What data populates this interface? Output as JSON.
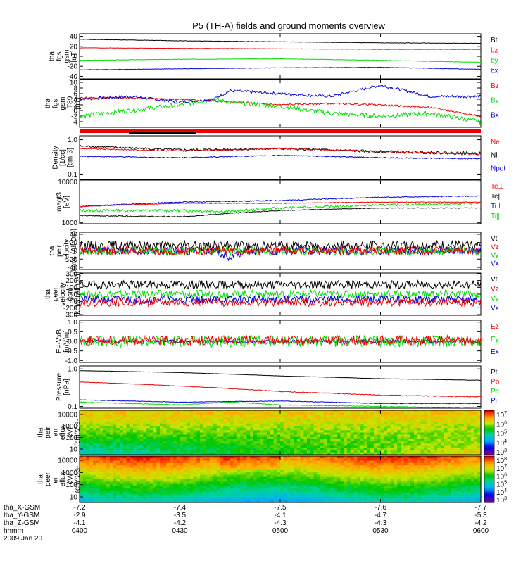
{
  "title": "P5 (TH-A) fields and ground moments overview",
  "colors": {
    "black": "#000000",
    "red": "#ee0000",
    "green": "#00dd00",
    "blue": "#0000dd"
  },
  "chart_data": {
    "type": "line",
    "x_range": [
      0,
      120
    ],
    "time_ticks": [
      "0400",
      "0430",
      "0500",
      "0530",
      "0600"
    ],
    "panels": [
      {
        "id": "fgs",
        "ylabel": [
          "tha",
          "fgs",
          "gsm",
          "[nT]"
        ],
        "ylim": [
          -45,
          45
        ],
        "yticks": [
          40,
          20,
          0,
          -20,
          -40
        ],
        "legend": [
          {
            "t": "Bt",
            "c": "black"
          },
          {
            "t": "bz",
            "c": "red"
          },
          {
            "t": "by",
            "c": "green"
          },
          {
            "t": "bx",
            "c": "blue"
          }
        ],
        "series": [
          {
            "name": "Bt",
            "color": "black",
            "noise": 0.4,
            "seed": 1,
            "x": [
              0,
              30,
              60,
              90,
              120
            ],
            "y": [
              34,
              31,
              29,
              27,
              26
            ]
          },
          {
            "name": "bz",
            "color": "red",
            "noise": 0.3,
            "seed": 2,
            "x": [
              0,
              30,
              60,
              90,
              120
            ],
            "y": [
              17,
              16,
              15,
              14,
              14
            ]
          },
          {
            "name": "by",
            "color": "green",
            "noise": 0.4,
            "seed": 3,
            "x": [
              0,
              30,
              60,
              90,
              120
            ],
            "y": [
              -8,
              -6,
              -5,
              -8,
              -12
            ]
          },
          {
            "name": "bx",
            "color": "blue",
            "noise": 0.4,
            "seed": 4,
            "x": [
              0,
              30,
              60,
              90,
              120
            ],
            "y": [
              -27,
              -25,
              -23,
              -22,
              -26
            ]
          }
        ]
      },
      {
        "id": "t89",
        "ylabel": [
          "tha",
          "fgs",
          "gsm",
          "-T89",
          "[nT]"
        ],
        "ylim": [
          -6,
          11
        ],
        "yticks": [
          10,
          8,
          6,
          4,
          2,
          0,
          -2,
          -4
        ],
        "legend": [
          {
            "t": "Bz",
            "c": "red"
          },
          {
            "t": "By",
            "c": "green"
          },
          {
            "t": "Bx",
            "c": "blue"
          }
        ],
        "series": [
          {
            "name": "Bz",
            "color": "red",
            "noise": 0.3,
            "seed": 5,
            "x": [
              0,
              15,
              30,
              45,
              60,
              75,
              90,
              105,
              120
            ],
            "y": [
              4.5,
              4.5,
              4,
              3,
              2,
              2.5,
              2,
              1,
              -2
            ]
          },
          {
            "name": "By",
            "color": "green",
            "noise": 0.8,
            "seed": 6,
            "x": [
              0,
              15,
              30,
              40,
              45,
              60,
              75,
              90,
              105,
              120
            ],
            "y": [
              -2,
              0,
              2,
              4,
              3,
              1.5,
              -1,
              -2,
              -1,
              -4
            ]
          },
          {
            "name": "Bx",
            "color": "blue",
            "noise": 0.5,
            "seed": 7,
            "x": [
              0,
              15,
              30,
              40,
              45,
              60,
              75,
              90,
              105,
              120
            ],
            "y": [
              4,
              5,
              3,
              4,
              7,
              6,
              5,
              9,
              5,
              5
            ]
          }
        ]
      },
      {
        "id": "density",
        "ylabel": [
          "Density",
          "[1/cc]",
          "[cm-3]"
        ],
        "log": true,
        "ylim": [
          0.07,
          1.3
        ],
        "yticks": [
          1.0,
          0.1
        ],
        "ytick_labels": [
          "1.0",
          "0.1"
        ],
        "legend": [
          {
            "t": "Ne",
            "c": "red"
          },
          {
            "t": "Ni",
            "c": "black"
          },
          {
            "t": "Npot",
            "c": "blue"
          }
        ],
        "series": [
          {
            "name": "Ni",
            "color": "black",
            "noise": 0.04,
            "seed": 8,
            "x": [
              0,
              30,
              60,
              90,
              120
            ],
            "y": [
              0.65,
              0.5,
              0.55,
              0.45,
              0.4
            ]
          },
          {
            "name": "Ne",
            "color": "red",
            "noise": 0.02,
            "seed": 9,
            "x": [
              0,
              30,
              60,
              90,
              120
            ],
            "y": [
              0.55,
              0.47,
              0.55,
              0.45,
              0.38
            ]
          },
          {
            "name": "Npot",
            "color": "blue",
            "noise": 0.01,
            "seed": 10,
            "x": [
              0,
              30,
              60,
              90,
              120
            ],
            "y": [
              0.33,
              0.3,
              0.35,
              0.3,
              0.28
            ]
          }
        ]
      },
      {
        "id": "temp",
        "ylabel": [
          "magt3",
          "[eV]"
        ],
        "log": true,
        "ylim": [
          950,
          11000
        ],
        "yticks": [
          10000,
          1000
        ],
        "ytick_labels": [
          "10000",
          "1000"
        ],
        "legend": [
          {
            "t": "Te⊥",
            "c": "red"
          },
          {
            "t": "Te||",
            "c": "black"
          },
          {
            "t": "Ti⊥",
            "c": "blue"
          },
          {
            "t": "Ti||",
            "c": "green"
          }
        ],
        "series": [
          {
            "name": "Ti⊥",
            "color": "blue",
            "noise": 100,
            "seed": 11,
            "x": [
              0,
              30,
              60,
              90,
              120
            ],
            "y": [
              2500,
              3200,
              3500,
              4200,
              4500
            ]
          },
          {
            "name": "Te⊥",
            "color": "red",
            "noise": 50,
            "seed": 12,
            "x": [
              0,
              30,
              60,
              90,
              120
            ],
            "y": [
              2500,
              3000,
              3000,
              3200,
              3200
            ]
          },
          {
            "name": "Ti||",
            "color": "green",
            "noise": 150,
            "seed": 13,
            "x": [
              0,
              30,
              45,
              60,
              90,
              120
            ],
            "y": [
              2000,
              2000,
              1900,
              2300,
              2700,
              3000
            ]
          },
          {
            "name": "Te||",
            "color": "black",
            "noise": 40,
            "seed": 14,
            "x": [
              0,
              30,
              45,
              60,
              90,
              120
            ],
            "y": [
              1500,
              1400,
              1700,
              2000,
              2300,
              2300
            ]
          }
        ]
      },
      {
        "id": "peir_vel",
        "ylabel": [
          "tha",
          "peir",
          "velocity",
          "[km/s (All Qs)]"
        ],
        "ylim": [
          -45,
          45
        ],
        "yticks": [
          40,
          20,
          0,
          -20,
          -40
        ],
        "legend": [
          {
            "t": "Vt",
            "c": "black"
          },
          {
            "t": "Vz",
            "c": "red"
          },
          {
            "t": "Vy",
            "c": "green"
          },
          {
            "t": "Vx",
            "c": "blue"
          }
        ],
        "series": [
          {
            "name": "Vt",
            "color": "black",
            "noise": 12,
            "seed": 15,
            "x": [
              0,
              120
            ],
            "y": [
              12,
              12
            ]
          },
          {
            "name": "Vx",
            "color": "blue",
            "noise": 10,
            "seed": 16,
            "x": [
              0,
              40,
              45,
              50,
              120
            ],
            "y": [
              0,
              0,
              -15,
              0,
              0
            ]
          },
          {
            "name": "Vy",
            "color": "green",
            "noise": 10,
            "seed": 17,
            "x": [
              0,
              120
            ],
            "y": [
              0,
              0
            ]
          },
          {
            "name": "Vz",
            "color": "red",
            "noise": 10,
            "seed": 18,
            "x": [
              0,
              120
            ],
            "y": [
              0,
              0
            ]
          }
        ]
      },
      {
        "id": "peer_vel",
        "ylabel": [
          "tha",
          "peer",
          "velocity",
          "gsm",
          "[km/s (All Qs)]"
        ],
        "ylim": [
          -310,
          310
        ],
        "yticks": [
          300,
          200,
          100,
          0,
          -100,
          -200,
          -300
        ],
        "legend": [
          {
            "t": "Vt",
            "c": "black"
          },
          {
            "t": "Vz",
            "c": "red"
          },
          {
            "t": "Vy",
            "c": "green"
          },
          {
            "t": "Vx",
            "c": "blue"
          }
        ],
        "series": [
          {
            "name": "Vt",
            "color": "black",
            "noise": 60,
            "seed": 19,
            "x": [
              0,
              120
            ],
            "y": [
              140,
              140
            ]
          },
          {
            "name": "Vy",
            "color": "green",
            "noise": 60,
            "seed": 20,
            "x": [
              0,
              120
            ],
            "y": [
              0,
              0
            ]
          },
          {
            "name": "Vx",
            "color": "blue",
            "noise": 60,
            "seed": 21,
            "x": [
              0,
              120
            ],
            "y": [
              -80,
              -80
            ]
          },
          {
            "name": "Vz",
            "color": "red",
            "noise": 60,
            "seed": 22,
            "x": [
              0,
              120
            ],
            "y": [
              -120,
              -120
            ]
          }
        ]
      },
      {
        "id": "efield",
        "ylabel": [
          "E=-VxB",
          "[mV/m]"
        ],
        "ylim": [
          -1.1,
          1.1
        ],
        "yticks": [
          1.0,
          0.5,
          0.0,
          -0.5,
          -1.0
        ],
        "ytick_labels": [
          "1.0",
          "0.5",
          "0.0",
          "-0.5",
          "-1.0"
        ],
        "legend": [
          {
            "t": "Ez",
            "c": "red"
          },
          {
            "t": "Ey",
            "c": "green"
          },
          {
            "t": "Ex",
            "c": "blue"
          }
        ],
        "series": [
          {
            "name": "Ex",
            "color": "blue",
            "noise": 0.08,
            "seed": 23,
            "x": [
              0,
              120
            ],
            "y": [
              0,
              0
            ]
          },
          {
            "name": "Ey",
            "color": "green",
            "noise": 0.3,
            "seed": 24,
            "x": [
              0,
              120
            ],
            "y": [
              0,
              0
            ]
          },
          {
            "name": "Ez",
            "color": "red",
            "noise": 0.25,
            "seed": 25,
            "x": [
              0,
              120
            ],
            "y": [
              0.05,
              0.05
            ]
          }
        ]
      },
      {
        "id": "pressure",
        "ylabel": [
          "Pressure",
          "[nPa]"
        ],
        "log": true,
        "ylim": [
          0.09,
          1.2
        ],
        "yticks": [
          1.0,
          0.1
        ],
        "ytick_labels": [
          "1.0",
          "0.1"
        ],
        "legend": [
          {
            "t": "Pt",
            "c": "black"
          },
          {
            "t": "Pb",
            "c": "red"
          },
          {
            "t": "Pe",
            "c": "green"
          },
          {
            "t": "Pi",
            "c": "blue"
          }
        ],
        "series": [
          {
            "name": "Pt",
            "color": "black",
            "noise": 0.005,
            "seed": 26,
            "x": [
              0,
              30,
              60,
              90,
              120
            ],
            "y": [
              0.9,
              0.8,
              0.65,
              0.55,
              0.5
            ]
          },
          {
            "name": "Pb",
            "color": "red",
            "noise": 0.005,
            "seed": 27,
            "x": [
              0,
              30,
              60,
              90,
              120
            ],
            "y": [
              0.45,
              0.35,
              0.25,
              0.2,
              0.18
            ]
          },
          {
            "name": "Pi",
            "color": "blue",
            "noise": 0.002,
            "seed": 28,
            "x": [
              0,
              30,
              60,
              90,
              120
            ],
            "y": [
              0.15,
              0.13,
              0.14,
              0.12,
              0.12
            ]
          },
          {
            "name": "Pe",
            "color": "green",
            "noise": 0.002,
            "seed": 29,
            "x": [
              0,
              30,
              45,
              60,
              90,
              120
            ],
            "y": [
              0.13,
              0.11,
              0.13,
              0.11,
              0.1,
              0.09
            ]
          }
        ]
      },
      {
        "id": "peir_spec",
        "type": "heatmap",
        "ylabel": [
          "tha",
          "peir",
          "en",
          "eflux",
          "eV/",
          "(cm^2-s-",
          "sr-eV)"
        ],
        "yticks": [
          10000,
          1000,
          100,
          10
        ],
        "ytick_labels": [
          "10000",
          "1000",
          "100",
          "10"
        ],
        "colorbar": {
          "ticks": [
            "10^7",
            "10^6",
            "10^5",
            "10^4",
            "10^3"
          ]
        }
      },
      {
        "id": "peer_spec",
        "type": "heatmap",
        "ylabel": [
          "tha",
          "peer",
          "en",
          "eflux",
          "eV/",
          "(cm^2-s-",
          "sr-eV)"
        ],
        "yticks": [
          10000,
          1000,
          100,
          10
        ],
        "ytick_labels": [
          "10000",
          "1000",
          "100",
          "10"
        ],
        "colorbar": {
          "ticks": [
            "10^8",
            "10^7",
            "10^6",
            "10^5",
            "10^4",
            "10^3"
          ]
        }
      }
    ],
    "position_rows": [
      {
        "label": "tha_X-GSM",
        "values": [
          "-7.2",
          "-7.4",
          "-7.5",
          "-7.6",
          "-7.7"
        ]
      },
      {
        "label": "tha_Y-GSM",
        "values": [
          "-2.9",
          "-3.5",
          "-4.1",
          "-4.7",
          "-5.3"
        ]
      },
      {
        "label": "tha_Z-GSM",
        "values": [
          "-4.1",
          "-4.2",
          "-4.3",
          "-4.3",
          "-4.2"
        ]
      },
      {
        "label": "hhmm",
        "values": [
          "0400",
          "0430",
          "0500",
          "0530",
          "0600"
        ]
      }
    ],
    "date": "2009 Jan 20"
  }
}
